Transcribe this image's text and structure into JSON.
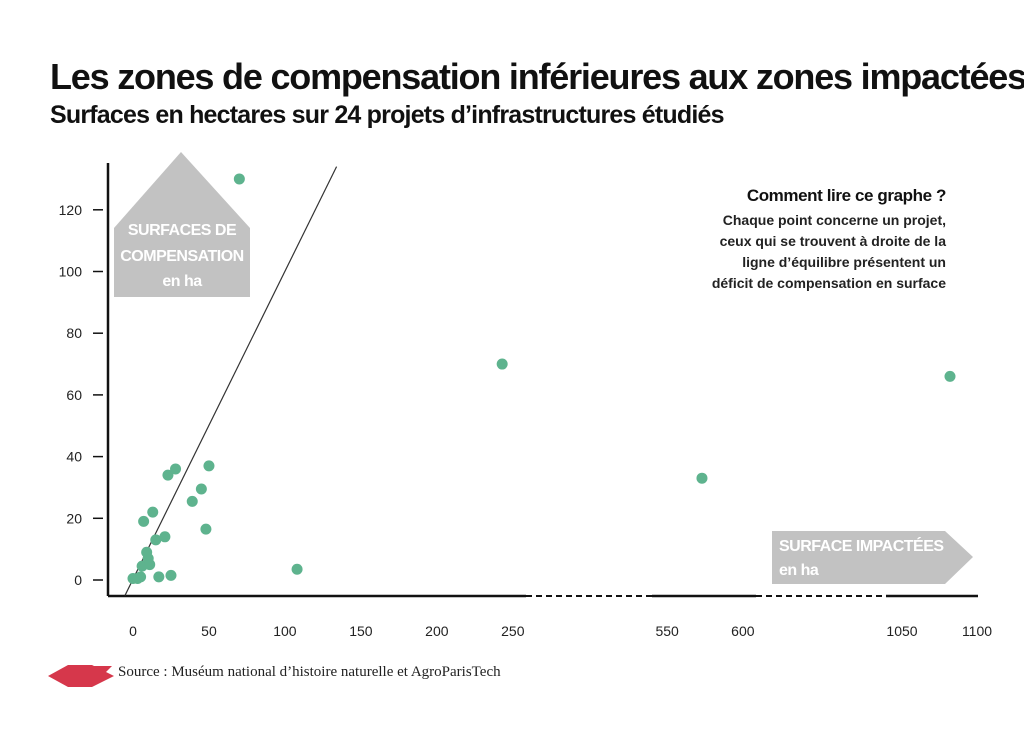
{
  "chart_data": {
    "type": "scatter",
    "title": "Les zones de compensation inférieures aux zones impactées",
    "subtitle": "Surfaces en hectares sur 24 projets d’infrastructures étudiés",
    "xlabel": [
      "SURFACE IMPACTÉES",
      "en ha"
    ],
    "ylabel": [
      "SURFACES DE",
      "COMPENSATION",
      "en ha"
    ],
    "x_ticks": [
      "0",
      "50",
      "100",
      "150",
      "200",
      "250",
      "550",
      "600",
      "1050",
      "1100"
    ],
    "y_ticks": [
      "0",
      "20",
      "40",
      "60",
      "80",
      "100",
      "120"
    ],
    "x_axis_breaks": [
      [
        260,
        540
      ],
      [
        610,
        1040
      ]
    ],
    "ylim": [
      0,
      130
    ],
    "equilibrium_line": "y = x",
    "points": [
      {
        "x": 0,
        "y": 0.5
      },
      {
        "x": 3,
        "y": 0.5
      },
      {
        "x": 5,
        "y": 1
      },
      {
        "x": 6,
        "y": 4.5
      },
      {
        "x": 7,
        "y": 19
      },
      {
        "x": 9,
        "y": 9
      },
      {
        "x": 10,
        "y": 7
      },
      {
        "x": 11,
        "y": 5
      },
      {
        "x": 13,
        "y": 22
      },
      {
        "x": 15,
        "y": 13
      },
      {
        "x": 17,
        "y": 1
      },
      {
        "x": 21,
        "y": 14
      },
      {
        "x": 23,
        "y": 34
      },
      {
        "x": 25,
        "y": 1.5
      },
      {
        "x": 28,
        "y": 36
      },
      {
        "x": 39,
        "y": 25.5
      },
      {
        "x": 45,
        "y": 29.5
      },
      {
        "x": 48,
        "y": 16.5
      },
      {
        "x": 50,
        "y": 37
      },
      {
        "x": 70,
        "y": 130
      },
      {
        "x": 108,
        "y": 3.5
      },
      {
        "x": 243,
        "y": 70
      },
      {
        "x": 573,
        "y": 33
      },
      {
        "x": 1082,
        "y": 66
      }
    ],
    "point_color": "#5eb38e",
    "grid": false
  },
  "howto": {
    "title": "Comment lire ce graphe ?",
    "lines": [
      "Chaque point concerne un projet,",
      "ceux qui se trouvent à droite de la",
      "ligne d’équilibre présentent un",
      "déficit de compensation en surface"
    ]
  },
  "source": "Source : Muséum national d’histoire naturelle et AgroParisTech",
  "colors": {
    "accent": "#d6374b",
    "label_box": "#c2c2c2",
    "point": "#5eb38e",
    "axis": "#111111"
  }
}
